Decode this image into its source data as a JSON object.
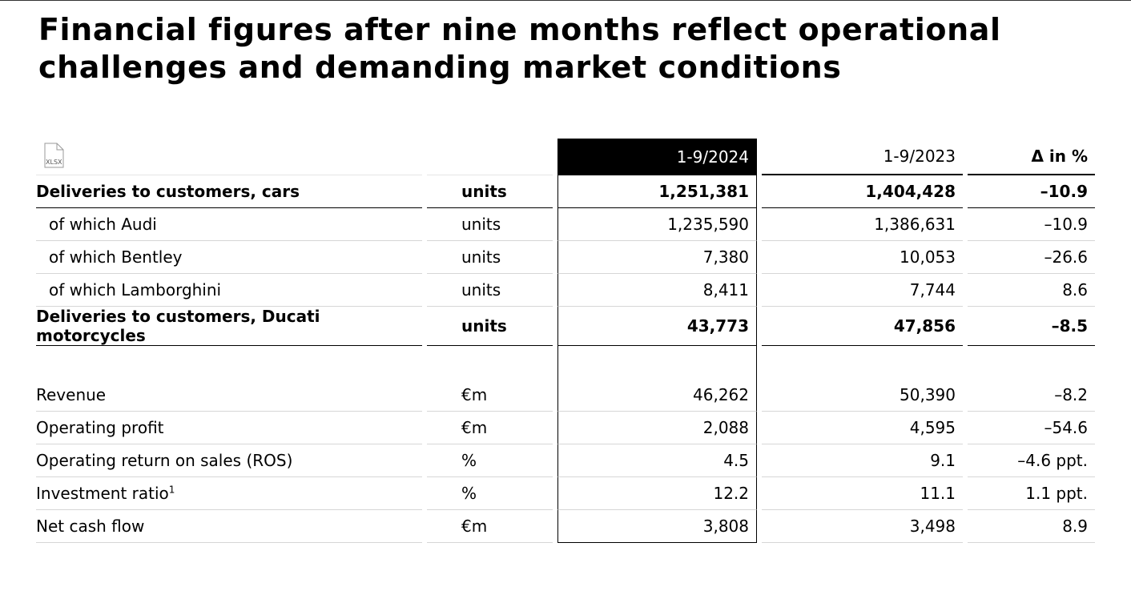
{
  "header": {
    "title_lines": [
      "Financial figures after nine months reflect operational",
      "challenges and demanding market conditions"
    ]
  },
  "table": {
    "columns": [
      "1-9/2024",
      "1-9/2023",
      "Δ in %"
    ],
    "delivery_rows": [
      {
        "label": "Deliveries to customers, cars",
        "unit": "units",
        "values": [
          "1,251,381",
          "1,404,428",
          "–10.9"
        ],
        "bold": true
      },
      {
        "label": "of which Audi",
        "unit": "units",
        "values": [
          "1,235,590",
          "1,386,631",
          "–10.9"
        ],
        "indent": true
      },
      {
        "label": "of which Bentley",
        "unit": "units",
        "values": [
          "7,380",
          "10,053",
          "–26.6"
        ],
        "indent": true
      },
      {
        "label": "of which Lamborghini",
        "unit": "units",
        "values": [
          "8,411",
          "7,744",
          "8.6"
        ],
        "indent": true
      },
      {
        "label": "Deliveries to customers, Ducati motorcycles",
        "unit": "units",
        "values": [
          "43,773",
          "47,856",
          "–8.5"
        ],
        "bold": true
      }
    ],
    "financial_rows": [
      {
        "label": "Revenue",
        "unit": "€m",
        "values": [
          "46,262",
          "50,390",
          "–8.2"
        ]
      },
      {
        "label": "Operating profit",
        "unit": "€m",
        "values": [
          "2,088",
          "4,595",
          "–54.6"
        ]
      },
      {
        "label": "Operating return on sales (ROS)",
        "unit": "%",
        "values": [
          "4.5",
          "9.1",
          "–4.6 ppt."
        ]
      },
      {
        "label": "Investment ratio",
        "footnote": "1",
        "unit": "%",
        "values": [
          "12.2",
          "11.1",
          "1.1 ppt."
        ]
      },
      {
        "label": "Net cash flow",
        "unit": "€m",
        "values": [
          "3,808",
          "3,498",
          "8.9"
        ]
      }
    ]
  }
}
